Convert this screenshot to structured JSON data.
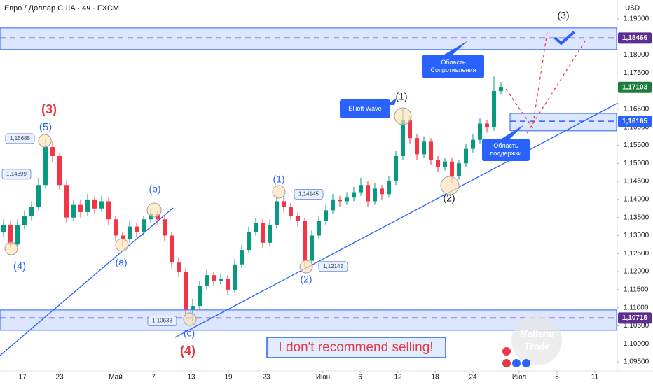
{
  "chart_data": {
    "type": "candlestick",
    "title": "Евро / Доллар США · 4ч · FXCM",
    "currency": "USD",
    "up_color": "#089981",
    "down_color": "#f23645",
    "open": [
      1.131,
      1.133,
      1.1275,
      1.133,
      1.1355,
      1.138,
      1.144,
      1.1545,
      1.152,
      1.144,
      1.135,
      1.1385,
      1.1365,
      1.14,
      1.1375,
      1.1395,
      1.1345,
      1.13,
      1.129,
      1.1325,
      1.131,
      1.1345,
      1.136,
      1.1345,
      1.13,
      1.1225,
      1.12,
      1.1095,
      1.1105,
      1.116,
      1.119,
      1.1175,
      1.118,
      1.115,
      1.122,
      1.126,
      1.131,
      1.1335,
      1.128,
      1.133,
      1.1395,
      1.138,
      1.1355,
      1.134,
      1.123,
      1.13,
      1.134,
      1.137,
      1.14,
      1.1395,
      1.1405,
      1.142,
      1.144,
      1.1395,
      1.143,
      1.1415,
      1.145,
      1.152,
      1.162,
      1.157,
      1.1525,
      1.156,
      1.151,
      1.149,
      1.1505,
      1.1465,
      1.15,
      1.154,
      1.1565,
      1.161,
      1.16,
      1.17
    ],
    "high": [
      1.1345,
      1.134,
      1.1345,
      1.137,
      1.1395,
      1.146,
      1.15685,
      1.156,
      1.153,
      1.145,
      1.14,
      1.14,
      1.1415,
      1.141,
      1.141,
      1.1405,
      1.1355,
      1.131,
      1.134,
      1.1335,
      1.1355,
      1.1372,
      1.137,
      1.1355,
      1.131,
      1.124,
      1.121,
      1.1125,
      1.1175,
      1.1205,
      1.12,
      1.1195,
      1.119,
      1.1235,
      1.1275,
      1.1325,
      1.135,
      1.1345,
      1.1345,
      1.14145,
      1.1405,
      1.139,
      1.1365,
      1.135,
      1.1315,
      1.1355,
      1.1385,
      1.1415,
      1.141,
      1.142,
      1.1435,
      1.146,
      1.145,
      1.1445,
      1.144,
      1.1465,
      1.1535,
      1.165,
      1.163,
      1.158,
      1.1575,
      1.157,
      1.152,
      1.1515,
      1.1515,
      1.151,
      1.1555,
      1.158,
      1.1625,
      1.162,
      1.174,
      1.1725
    ],
    "low": [
      1.1295,
      1.1265,
      1.1268,
      1.1318,
      1.1342,
      1.137,
      1.143,
      1.1505,
      1.1425,
      1.1335,
      1.134,
      1.135,
      1.1355,
      1.136,
      1.1365,
      1.133,
      1.1285,
      1.1268,
      1.128,
      1.1295,
      1.13,
      1.1335,
      1.133,
      1.1285,
      1.121,
      1.1185,
      1.108,
      1.10633,
      1.1095,
      1.115,
      1.116,
      1.1165,
      1.1135,
      1.114,
      1.121,
      1.125,
      1.13,
      1.1265,
      1.127,
      1.132,
      1.1365,
      1.1345,
      1.1325,
      1.12142,
      1.1225,
      1.129,
      1.133,
      1.136,
      1.138,
      1.1385,
      1.1395,
      1.141,
      1.138,
      1.1385,
      1.14,
      1.1405,
      1.144,
      1.151,
      1.1555,
      1.151,
      1.1515,
      1.1495,
      1.1475,
      1.148,
      1.1445,
      1.1455,
      1.149,
      1.153,
      1.1555,
      1.1585,
      1.159,
      1.169
    ],
    "close": [
      1.133,
      1.1275,
      1.133,
      1.1355,
      1.138,
      1.144,
      1.1545,
      1.152,
      1.144,
      1.135,
      1.1385,
      1.1365,
      1.14,
      1.1375,
      1.1395,
      1.1345,
      1.13,
      1.129,
      1.1325,
      1.131,
      1.1345,
      1.136,
      1.1345,
      1.13,
      1.1225,
      1.12,
      1.1095,
      1.1105,
      1.116,
      1.119,
      1.1175,
      1.118,
      1.115,
      1.122,
      1.126,
      1.131,
      1.1335,
      1.128,
      1.133,
      1.1395,
      1.138,
      1.1355,
      1.134,
      1.123,
      1.13,
      1.134,
      1.137,
      1.14,
      1.1395,
      1.1405,
      1.142,
      1.144,
      1.1395,
      1.143,
      1.1415,
      1.145,
      1.152,
      1.162,
      1.157,
      1.1525,
      1.156,
      1.151,
      1.149,
      1.1505,
      1.1465,
      1.15,
      1.154,
      1.1565,
      1.161,
      1.16,
      1.17,
      1.171
    ],
    "xlim": [
      -0.5,
      87.5
    ],
    "xticks": [
      {
        "value": 2.7,
        "label": "17"
      },
      {
        "value": 8.0,
        "label": "23"
      },
      {
        "value": 16.0,
        "label": "Май"
      },
      {
        "value": 21.4,
        "label": "7"
      },
      {
        "value": 26.8,
        "label": "13"
      },
      {
        "value": 32.1,
        "label": "19"
      },
      {
        "value": 37.5,
        "label": "23"
      },
      {
        "value": 45.6,
        "label": "Июн"
      },
      {
        "value": 50.9,
        "label": "6"
      },
      {
        "value": 56.3,
        "label": "12"
      },
      {
        "value": 61.6,
        "label": "18"
      },
      {
        "value": 67.0,
        "label": "24"
      },
      {
        "value": 73.6,
        "label": "Июл"
      },
      {
        "value": 79.0,
        "label": "5"
      },
      {
        "value": 84.4,
        "label": "11"
      }
    ],
    "ylim": [
      1.0925,
      1.1952
    ],
    "yticks": [
      {
        "value": 1.19,
        "label": "1,19000"
      },
      {
        "value": 1.18,
        "label": "1,18000"
      },
      {
        "value": 1.175,
        "label": "1,17500"
      },
      {
        "value": 1.165,
        "label": "1,16500"
      },
      {
        "value": 1.16,
        "label": "1,16000"
      },
      {
        "value": 1.155,
        "label": "1,15500"
      },
      {
        "value": 1.15,
        "label": "1,15000"
      },
      {
        "value": 1.145,
        "label": "1,14500"
      },
      {
        "value": 1.14,
        "label": "1,14000"
      },
      {
        "value": 1.135,
        "label": "1,13500"
      },
      {
        "value": 1.13,
        "label": "1,13000"
      },
      {
        "value": 1.125,
        "label": "1,12500"
      },
      {
        "value": 1.12,
        "label": "1,12000"
      },
      {
        "value": 1.115,
        "label": "1,11500"
      },
      {
        "value": 1.11,
        "label": "1,11000"
      },
      {
        "value": 1.105,
        "label": "1,10500"
      },
      {
        "value": 1.1,
        "label": "1,10000"
      },
      {
        "value": 1.095,
        "label": "1,09500"
      }
    ],
    "grid": false,
    "zones": [
      [
        1.18147,
        1.18748
      ],
      [
        1.10376,
        1.10938
      ],
      [
        1.159,
        1.1638
      ]
    ],
    "price_tags": [
      {
        "value": 1.18466,
        "label": "1,18466",
        "color": "#5e2d91",
        "dashed": true
      },
      {
        "value": 1.17103,
        "label": "1,17103",
        "color": "#1b7e3c",
        "dashed": false
      },
      {
        "value": 1.16165,
        "label": "1,16165",
        "color": "#2962ff",
        "dashed": true
      },
      {
        "value": 1.10715,
        "label": "1,10715",
        "color": "#5e2d91",
        "dashed": true
      }
    ],
    "price_callouts": [
      {
        "value": 1.15685,
        "label": "1,15685"
      },
      {
        "value": 1.14699,
        "label": "1,14699"
      },
      {
        "value": 1.14145,
        "label": "1,14145"
      },
      {
        "value": 1.12142,
        "label": "1,12142"
      },
      {
        "value": 1.10633,
        "label": "1,10633"
      }
    ],
    "waves": [
      {
        "text": "(3)",
        "color": "#e53945"
      },
      {
        "text": "(5)",
        "color": "#2962ff"
      },
      {
        "text": "(4)",
        "color": "#2962ff"
      },
      {
        "text": "(a)",
        "color": "#2962ff"
      },
      {
        "text": "(b)",
        "color": "#2962ff"
      },
      {
        "text": "(c)",
        "color": "#2962ff"
      },
      {
        "text": "(4)",
        "color": "#e53945"
      },
      {
        "text": "(1)",
        "color": "#2962ff"
      },
      {
        "text": "(2)",
        "color": "#2962ff"
      },
      {
        "text": "(1)",
        "color": "#131722"
      },
      {
        "text": "(2)",
        "color": "#131722"
      },
      {
        "text": "(3)",
        "color": "#131722"
      }
    ],
    "notes": [
      [
        "Elliott Wave"
      ],
      [
        "Область",
        "Сопротивления"
      ],
      [
        "Область",
        "поддержки"
      ]
    ],
    "banner": "I don't recommend selling!",
    "watermark": [
      "Hellena",
      "Trade"
    ]
  }
}
